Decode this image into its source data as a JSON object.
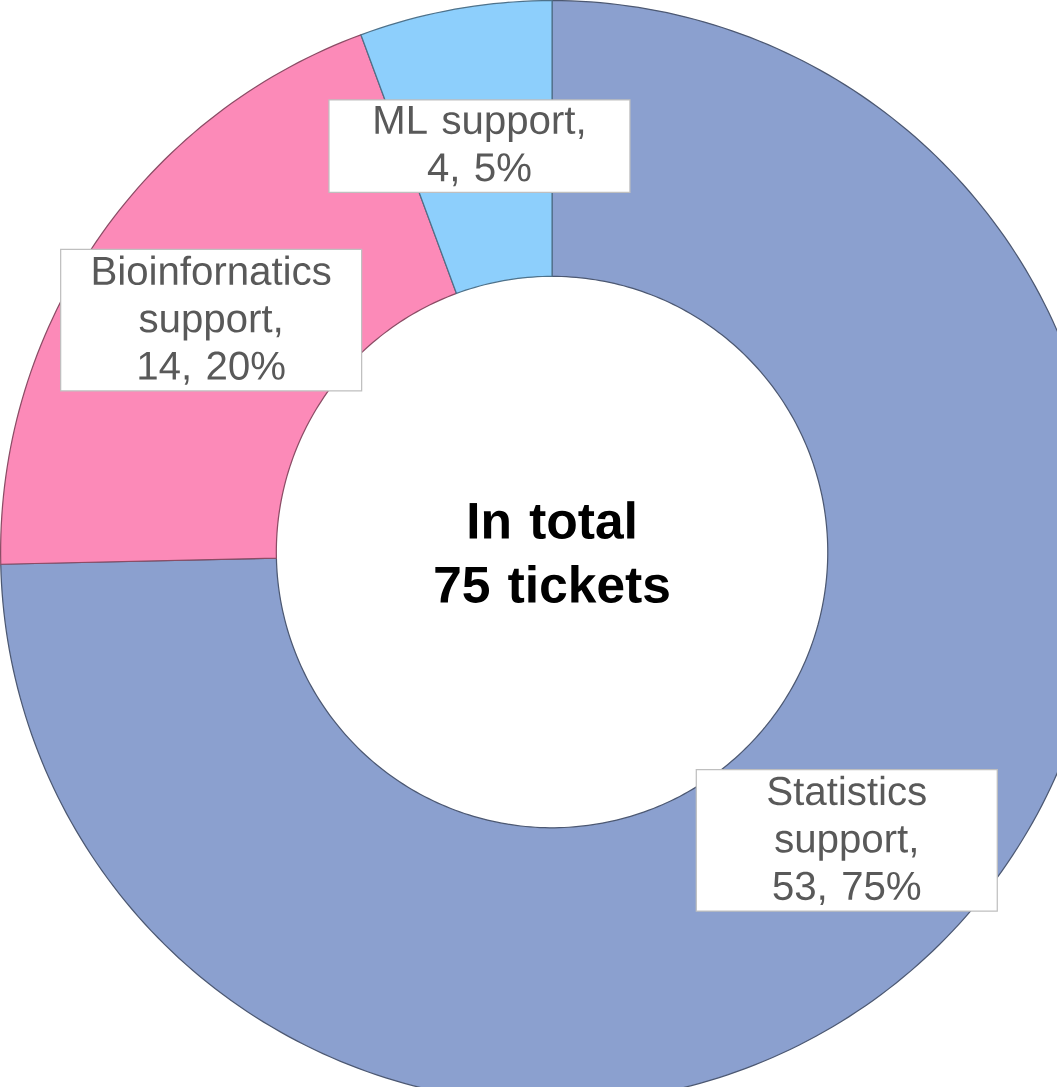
{
  "chart_data": {
    "type": "donut",
    "categories": [
      "Statistics support",
      "Bioinfornatics support",
      "ML support"
    ],
    "values": [
      53,
      14,
      4
    ],
    "value_labels": [
      ", 53, 75%",
      ", 14, 20%",
      ", 4, 5%"
    ],
    "colors": [
      "#8ba0cf",
      "#fc8ab8",
      "#8dcffc"
    ],
    "annotations": [
      "In total 75 tickets"
    ]
  }
}
